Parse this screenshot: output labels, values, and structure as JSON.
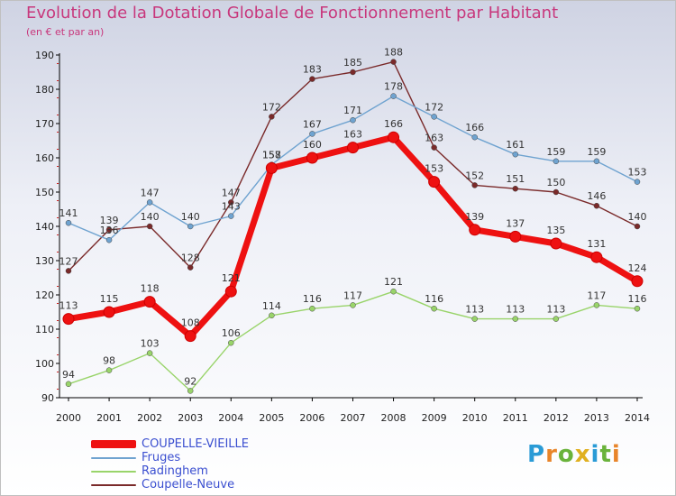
{
  "header": {
    "title": "Evolution de la Dotation Globale de Fonctionnement par Habitant",
    "subtitle": "(en € et par an)"
  },
  "brand": {
    "text": "Proxiti",
    "letter_colors": [
      "#2a9bd6",
      "#e8852a",
      "#6ab33b",
      "#e0b020",
      "#2a9bd6",
      "#6ab33b",
      "#e8852a"
    ]
  },
  "chart_data": {
    "type": "line",
    "title": "Evolution de la Dotation Globale de Fonctionnement par Habitant",
    "subtitle": "(en € et par an)",
    "xlabel": "",
    "ylabel": "",
    "ylim": [
      90,
      190
    ],
    "yticks": [
      90,
      100,
      110,
      120,
      130,
      140,
      150,
      160,
      170,
      180,
      190
    ],
    "grid": false,
    "legend_position": "bottom-left",
    "categories": [
      "2000",
      "2001",
      "2002",
      "2003",
      "2004",
      "2005",
      "2006",
      "2007",
      "2008",
      "2009",
      "2010",
      "2011",
      "2012",
      "2013",
      "2014"
    ],
    "series": [
      {
        "name": "Coupelle-Neuve",
        "color": "#7a2a2a",
        "style": "thin",
        "values": [
          127,
          139,
          140,
          128,
          147,
          172,
          183,
          185,
          188,
          163,
          152,
          151,
          150,
          146,
          140
        ]
      },
      {
        "name": "Fruges",
        "color": "#6fa3d0",
        "style": "thin",
        "values": [
          141,
          136,
          147,
          140,
          143,
          158,
          167,
          171,
          178,
          172,
          166,
          161,
          159,
          159,
          153
        ]
      },
      {
        "name": "Radinghem",
        "color": "#99d46a",
        "style": "thin",
        "values": [
          94,
          98,
          103,
          92,
          106,
          114,
          116,
          117,
          121,
          116,
          113,
          113,
          113,
          117,
          116
        ]
      },
      {
        "name": "COUPELLE-VIEILLE",
        "color": "#ee1111",
        "style": "thick",
        "values": [
          113,
          115,
          118,
          108,
          121,
          157,
          160,
          163,
          166,
          153,
          139,
          137,
          135,
          131,
          124
        ]
      }
    ],
    "legend_order": [
      "COUPELLE-VIEILLE",
      "Fruges",
      "Radinghem",
      "Coupelle-Neuve"
    ]
  }
}
